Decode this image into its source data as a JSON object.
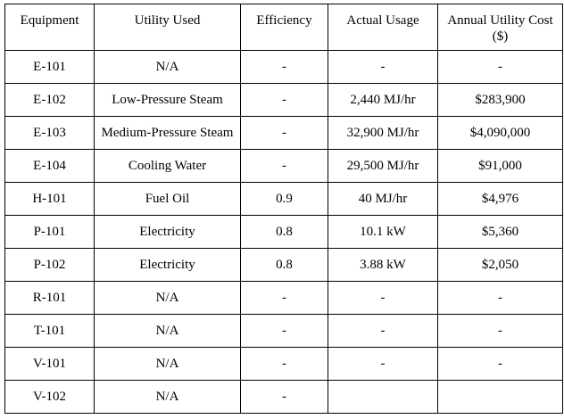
{
  "table": {
    "headers": [
      "Equipment",
      "Utility Used",
      "Efficiency",
      "Actual Usage",
      "Annual Utility Cost ($)"
    ],
    "rows": [
      [
        "E-101",
        "N/A",
        "-",
        "-",
        "-"
      ],
      [
        "E-102",
        "Low-Pressure Steam",
        "-",
        "2,440 MJ/hr",
        "$283,900"
      ],
      [
        "E-103",
        "Medium-Pressure Steam",
        "-",
        "32,900 MJ/hr",
        "$4,090,000"
      ],
      [
        "E-104",
        "Cooling Water",
        "-",
        "29,500 MJ/hr",
        "$91,000"
      ],
      [
        "H-101",
        "Fuel Oil",
        "0.9",
        "40 MJ/hr",
        "$4,976"
      ],
      [
        "P-101",
        "Electricity",
        "0.8",
        "10.1 kW",
        "$5,360"
      ],
      [
        "P-102",
        "Electricity",
        "0.8",
        "3.88 kW",
        "$2,050"
      ],
      [
        "R-101",
        "N/A",
        "-",
        "-",
        "-"
      ],
      [
        "T-101",
        "N/A",
        "-",
        "-",
        "-"
      ],
      [
        "V-101",
        "N/A",
        "-",
        "-",
        "-"
      ],
      [
        "V-102",
        "N/A",
        "-",
        "",
        ""
      ]
    ]
  }
}
